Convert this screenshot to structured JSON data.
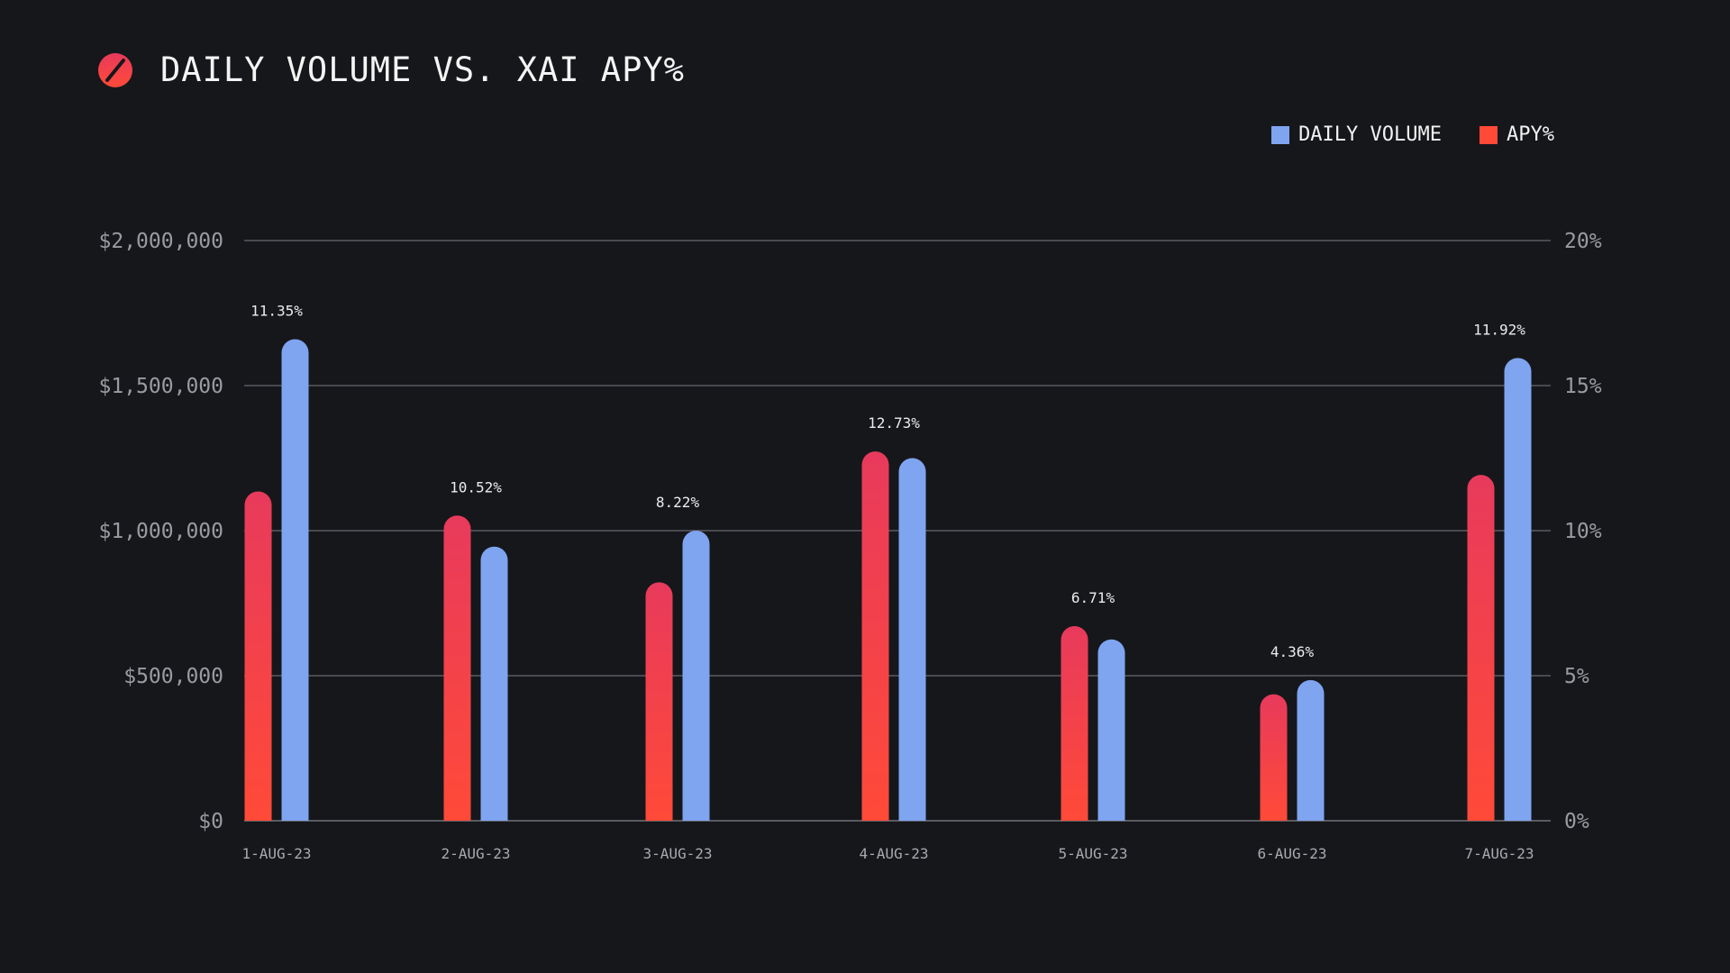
{
  "header": {
    "title": "DAILY VOLUME VS. XAI APY%",
    "logo_icon": "slashed-circle-icon"
  },
  "legend": {
    "volume_label": "DAILY VOLUME",
    "apy_label": "APY%"
  },
  "colors": {
    "background": "#16171b",
    "volume": "#7fa4f0",
    "apy_top": "#e83a5c",
    "apy_bottom": "#ff4a38",
    "grid": "#5a5b61",
    "axis_text": "#9a9ba1"
  },
  "chart_data": {
    "type": "bar",
    "title": "DAILY VOLUME VS. XAI APY%",
    "categories": [
      "1-AUG-23",
      "2-AUG-23",
      "3-AUG-23",
      "4-AUG-23",
      "5-AUG-23",
      "6-AUG-23",
      "7-AUG-23"
    ],
    "series": [
      {
        "name": "APY%",
        "axis": "right",
        "values": [
          11.35,
          10.52,
          8.22,
          12.73,
          6.71,
          4.36,
          11.92
        ],
        "data_labels": [
          "11.35%",
          "10.52%",
          "8.22%",
          "12.73%",
          "6.71%",
          "4.36%",
          "11.92%"
        ]
      },
      {
        "name": "DAILY VOLUME",
        "axis": "left",
        "values": [
          1660000,
          945000,
          1000000,
          1250000,
          625000,
          485000,
          1595000
        ]
      }
    ],
    "y_left": {
      "ylim": [
        0,
        2000000
      ],
      "ticks": [
        0,
        500000,
        1000000,
        1500000,
        2000000
      ],
      "tick_labels": [
        "$0",
        "$500,000",
        "$1,000,000",
        "$1,500,000",
        "$2,000,000"
      ]
    },
    "y_right": {
      "ylim": [
        0,
        20
      ],
      "ticks": [
        0,
        5,
        10,
        15,
        20
      ],
      "tick_labels": [
        "0%",
        "5%",
        "10%",
        "15%",
        "20%"
      ]
    },
    "xlabel": "",
    "ylabel": "",
    "grid": true,
    "legend_position": "top-right"
  }
}
